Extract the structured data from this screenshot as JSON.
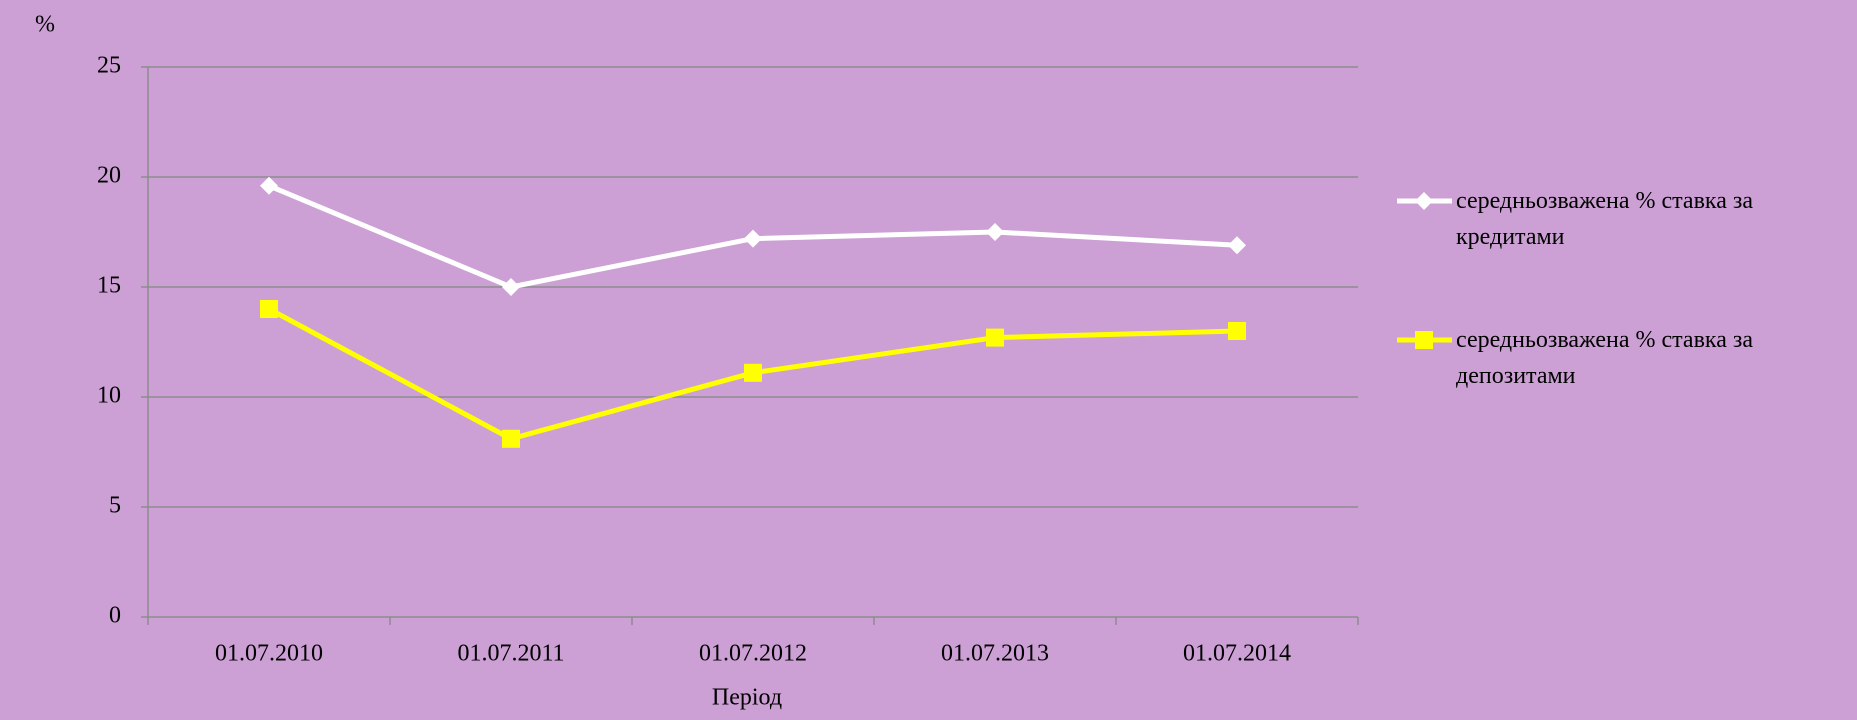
{
  "chart_data": {
    "type": "line",
    "y_label": "%",
    "x_label": "Період",
    "categories": [
      "01.07.2010",
      "01.07.2011",
      "01.07.2012",
      "01.07.2013",
      "01.07.2014"
    ],
    "series": [
      {
        "name": "середньозважена % ставка за кредитами",
        "color": "#ffffff",
        "marker": "diamond",
        "values": [
          19.6,
          15.0,
          17.2,
          17.5,
          16.9
        ]
      },
      {
        "name": "середньозважена % ставка за депозитами",
        "color": "#ffff00",
        "marker": "square",
        "values": [
          14.0,
          8.1,
          11.1,
          12.7,
          13.0
        ]
      }
    ],
    "ylim": [
      0,
      25
    ],
    "yticks": [
      0,
      5,
      10,
      15,
      20,
      25
    ],
    "grid": true,
    "legend": "right"
  }
}
